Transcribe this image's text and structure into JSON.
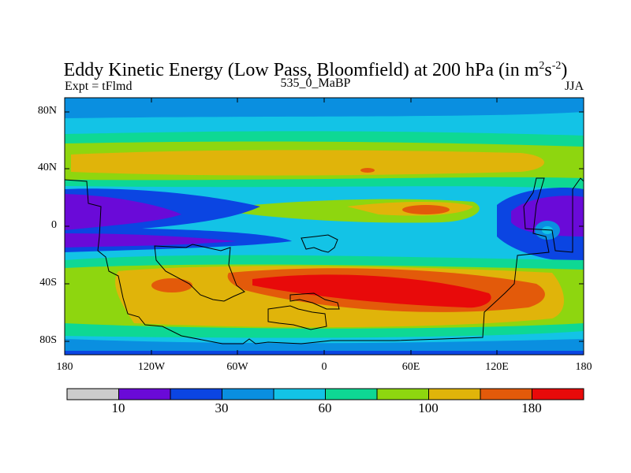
{
  "header": {
    "title": "Eddy Kinetic Energy (Low Pass, Bloomfield) at 200 hPa (in m",
    "title_sup1": "2",
    "title_mid": "s",
    "title_sup2": "-2",
    "title_end": ")",
    "experiment": "Expt = tFlmd",
    "case": "535_0_MaBP",
    "season": "JJA"
  },
  "map": {
    "lat_labels": [
      "80N",
      "40N",
      "0",
      "40S",
      "80S"
    ],
    "lon_labels": [
      "180",
      "120W",
      "60W",
      "0",
      "60E",
      "120E",
      "180"
    ],
    "background_color": "#13c3e6"
  },
  "colorbar": {
    "colors": [
      "#cccccc",
      "#6a0ad8",
      "#0b45e2",
      "#0a8fe0",
      "#13c3e6",
      "#0ed894",
      "#8ed60f",
      "#e0b40a",
      "#e35a0a",
      "#e80a0a"
    ],
    "labels": [
      "10",
      "30",
      "60",
      "100",
      "180"
    ]
  }
}
